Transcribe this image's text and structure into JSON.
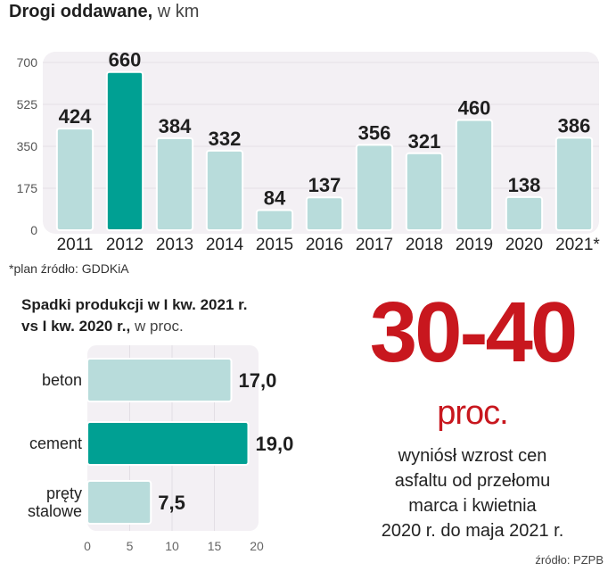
{
  "chart_data": [
    {
      "type": "bar",
      "title_bold": "Drogi oddawane,",
      "title_light": "w km",
      "categories": [
        "2011",
        "2012",
        "2013",
        "2014",
        "2015",
        "2016",
        "2017",
        "2018",
        "2019",
        "2020",
        "2021*"
      ],
      "values": [
        424,
        660,
        384,
        332,
        84,
        137,
        356,
        321,
        460,
        138,
        386
      ],
      "highlight_index": 1,
      "yticks": [
        0,
        175,
        350,
        525,
        700
      ],
      "ylim": [
        0,
        700
      ],
      "xlabel": "",
      "ylabel": "",
      "grid": true,
      "note": "*plan źródło: GDDKiA"
    },
    {
      "type": "bar",
      "orientation": "horizontal",
      "title_bold": "Spadki produkcji w I kw. 2021 r. vs I kw. 2020 r.,",
      "title_bold_line1": "Spadki produkcji w I kw. 2021 r.",
      "title_bold_line2": "vs I kw. 2020 r.,",
      "title_light": "w proc.",
      "categories": [
        "beton",
        "cement",
        "pręty stalowe"
      ],
      "category_lines": [
        [
          "beton"
        ],
        [
          "cement"
        ],
        [
          "pręty",
          "stalowe"
        ]
      ],
      "values": [
        17.0,
        19.0,
        7.5
      ],
      "value_labels": [
        "17,0",
        "19,0",
        "7,5"
      ],
      "highlight_index": 1,
      "xticks": [
        0,
        5,
        10,
        15,
        20
      ],
      "xlim": [
        0,
        20
      ],
      "grid": true
    }
  ],
  "colors": {
    "bar": "#b8dcdb",
    "bar_highlight": "#00a093",
    "plot_bg": "#f3f0f4",
    "accent_red": "#c8171e"
  },
  "callout": {
    "number": "30-40",
    "unit": "proc.",
    "description_lines": [
      "wyniósł wzrost cen",
      "asfaltu od przełomu",
      "marca i kwietnia",
      "2020 r. do maja 2021 r."
    ],
    "source": "źródło: PZPB"
  }
}
